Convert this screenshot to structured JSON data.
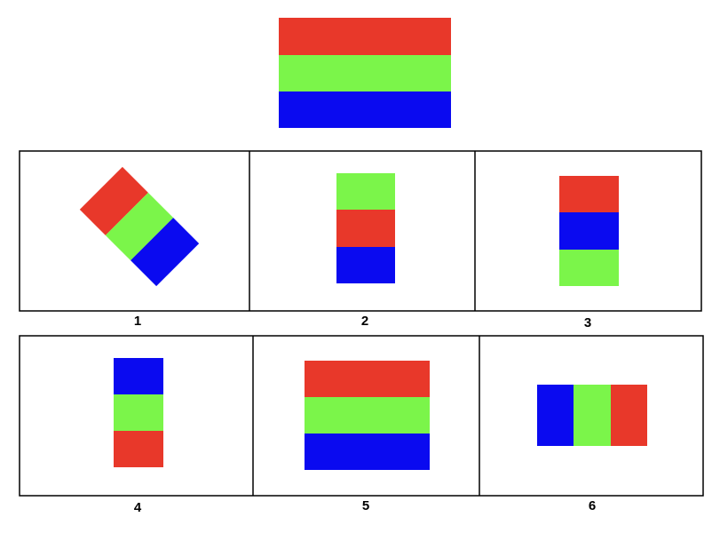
{
  "options": [
    {
      "label": "1"
    },
    {
      "label": "2"
    },
    {
      "label": "3"
    },
    {
      "label": "4"
    },
    {
      "label": "5"
    },
    {
      "label": "6"
    }
  ]
}
